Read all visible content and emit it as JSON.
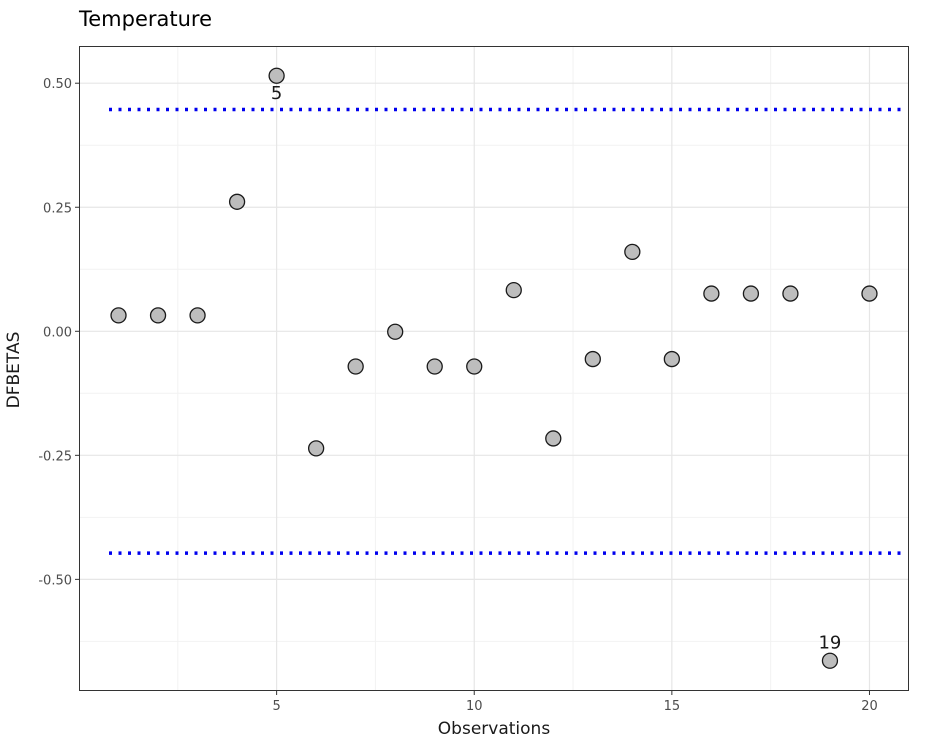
{
  "chart_data": {
    "type": "scatter",
    "title": "Temperature",
    "xlabel": "Observations",
    "ylabel": "DFBETAS",
    "xlim": [
      0,
      21
    ],
    "ylim": [
      -0.725,
      0.575
    ],
    "x_ticks": [
      5,
      10,
      15,
      20
    ],
    "x_tick_labels": [
      "5",
      "10",
      "15",
      "20"
    ],
    "y_ticks": [
      0.5,
      0.25,
      0.0,
      -0.25,
      -0.5
    ],
    "y_tick_labels": [
      "0.50",
      "0.25",
      "0.00",
      "-0.25",
      "-0.50"
    ],
    "grid": true,
    "threshold_lines": [
      0.447,
      -0.447
    ],
    "threshold_color": "#0000ee",
    "point_fill": "#bdbdbd",
    "point_stroke": "#1a1a1a",
    "points": [
      {
        "x": 1,
        "y": 0.032
      },
      {
        "x": 2,
        "y": 0.032
      },
      {
        "x": 3,
        "y": 0.032
      },
      {
        "x": 4,
        "y": 0.261
      },
      {
        "x": 5,
        "y": 0.515,
        "label": "5"
      },
      {
        "x": 6,
        "y": -0.236
      },
      {
        "x": 7,
        "y": -0.071
      },
      {
        "x": 8,
        "y": -0.001
      },
      {
        "x": 9,
        "y": -0.071
      },
      {
        "x": 10,
        "y": -0.071
      },
      {
        "x": 11,
        "y": 0.083
      },
      {
        "x": 12,
        "y": -0.216
      },
      {
        "x": 13,
        "y": -0.056
      },
      {
        "x": 14,
        "y": 0.16
      },
      {
        "x": 15,
        "y": -0.056
      },
      {
        "x": 16,
        "y": 0.076
      },
      {
        "x": 17,
        "y": 0.076
      },
      {
        "x": 18,
        "y": 0.076
      },
      {
        "x": 19,
        "y": -0.664,
        "label": "19"
      },
      {
        "x": 20,
        "y": 0.076
      }
    ]
  }
}
